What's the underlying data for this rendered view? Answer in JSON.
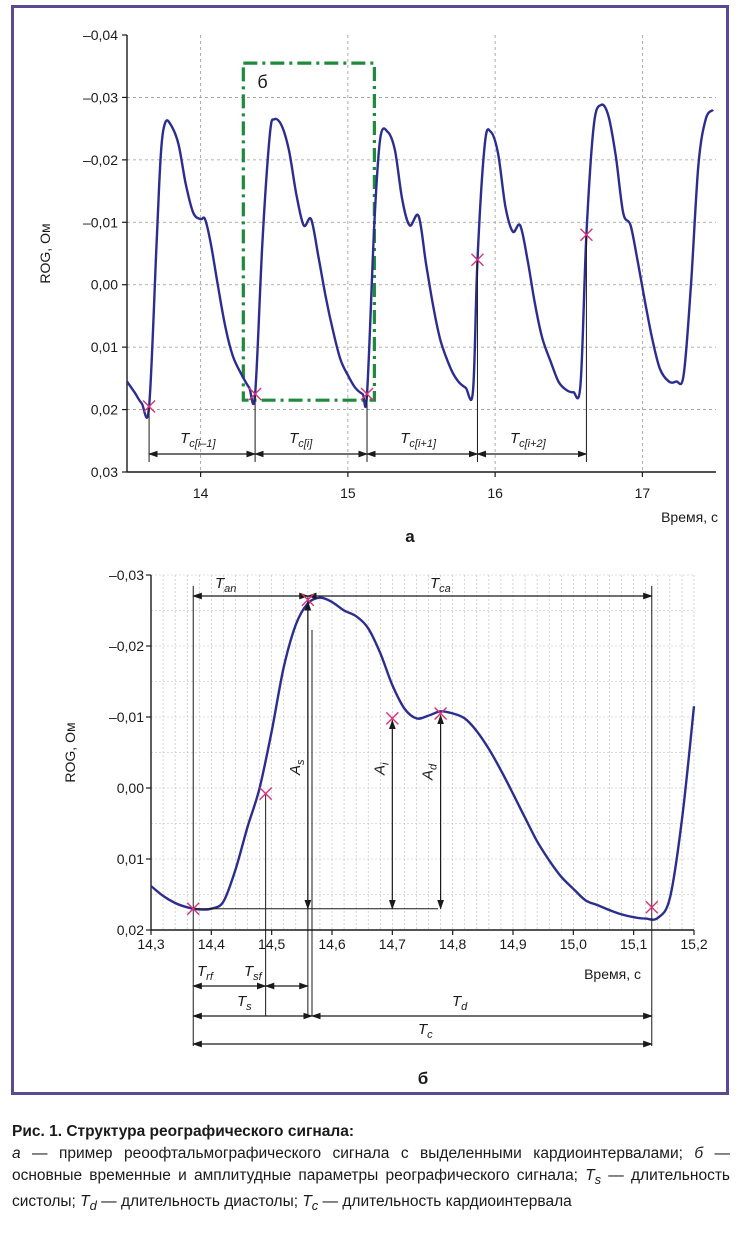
{
  "chart_data": [
    {
      "id": "a",
      "type": "line",
      "panel_label": "а",
      "xlabel": "Время, с",
      "ylabel": "ROG, Ом",
      "xlim": [
        13.5,
        17.5
      ],
      "ylim": [
        -0.04,
        0.03
      ],
      "y_inverted": true,
      "xticks": [
        "14",
        "15",
        "16",
        "17"
      ],
      "yticks": [
        "–0,04",
        "–0,03",
        "–0,02",
        "–0,01",
        "0,00",
        "0,01",
        "0,02",
        "0,03"
      ],
      "grid": "dashed",
      "series": [
        {
          "color": "#2b2e8f",
          "x": [
            13.5,
            13.55,
            13.6,
            13.65,
            13.7,
            13.73,
            13.76,
            13.8,
            13.85,
            13.9,
            13.95,
            14.0,
            14.03,
            14.07,
            14.12,
            14.17,
            14.22,
            14.28,
            14.33,
            14.37,
            14.42,
            14.47,
            14.5,
            14.55,
            14.6,
            14.65,
            14.7,
            14.75,
            14.8,
            14.85,
            14.9,
            14.95,
            15.0,
            15.05,
            15.1,
            15.13,
            15.18,
            15.22,
            15.27,
            15.32,
            15.37,
            15.42,
            15.48,
            15.53,
            15.58,
            15.63,
            15.7,
            15.75,
            15.8,
            15.85,
            15.88,
            15.93,
            15.97,
            16.02,
            16.07,
            16.12,
            16.17,
            16.22,
            16.27,
            16.32,
            16.38,
            16.43,
            16.48,
            16.53,
            16.58,
            16.62,
            16.67,
            16.72,
            16.77,
            16.82,
            16.87,
            16.92,
            16.97,
            17.02,
            17.07,
            17.12,
            17.18,
            17.23,
            17.28,
            17.33,
            17.38,
            17.43,
            17.48
          ],
          "y": [
            0.0155,
            0.0172,
            0.019,
            0.0195,
            -0.006,
            -0.021,
            -0.026,
            -0.0255,
            -0.0225,
            -0.016,
            -0.0115,
            -0.0105,
            -0.0105,
            -0.0065,
            0.0005,
            0.007,
            0.0115,
            0.0145,
            0.0165,
            0.0175,
            -0.007,
            -0.024,
            -0.0265,
            -0.0255,
            -0.0215,
            -0.0145,
            -0.0095,
            -0.0105,
            -0.0045,
            0.002,
            0.0075,
            0.012,
            0.0145,
            0.0165,
            0.0175,
            0.0175,
            -0.01,
            -0.0235,
            -0.0245,
            -0.0215,
            -0.0135,
            -0.0095,
            -0.011,
            -0.0035,
            0.0035,
            0.009,
            0.0135,
            0.0155,
            0.0165,
            0.017,
            -0.004,
            -0.0225,
            -0.0245,
            -0.021,
            -0.0125,
            -0.0085,
            -0.0095,
            -0.004,
            0.003,
            0.0085,
            0.0125,
            0.0155,
            0.0168,
            0.0172,
            0.016,
            -0.008,
            -0.0255,
            -0.0288,
            -0.027,
            -0.0205,
            -0.0115,
            -0.0095,
            -0.0035,
            0.003,
            0.009,
            0.0135,
            0.0155,
            0.0155,
            0.0145,
            0.0,
            -0.019,
            -0.0265,
            -0.028
          ]
        }
      ],
      "markers_x": [
        13.65,
        14.37,
        15.13,
        15.88,
        16.62
      ],
      "marker_color": "#d6337a",
      "highlight_box": {
        "label": "б",
        "x": [
          14.29,
          15.18
        ],
        "y": [
          -0.0355,
          0.0185
        ],
        "color": "#1f8a3c",
        "style": "dash-dot"
      },
      "intervals": [
        {
          "main": "T",
          "sub": "c[i–1]",
          "from": 13.65,
          "to": 14.37
        },
        {
          "main": "T",
          "sub": "c[i]",
          "from": 14.37,
          "to": 15.13
        },
        {
          "main": "T",
          "sub": "c[i+1]",
          "from": 15.13,
          "to": 15.88
        },
        {
          "main": "T",
          "sub": "c[i+2]",
          "from": 15.88,
          "to": 16.62
        }
      ]
    },
    {
      "id": "b",
      "type": "line",
      "panel_label": "б",
      "xlabel": "Время, с",
      "ylabel": "ROG, Ом",
      "xlim": [
        14.3,
        15.2
      ],
      "ylim": [
        -0.03,
        0.02
      ],
      "y_inverted": true,
      "xticks": [
        "14,3",
        "14,4",
        "14,5",
        "14,6",
        "14,7",
        "14,8",
        "14,9",
        "15,0",
        "15,1",
        "15,2"
      ],
      "yticks": [
        "–0,03",
        "–0,02",
        "–0,01",
        "0,00",
        "0,01",
        "0,02"
      ],
      "grid": "dotted",
      "series": [
        {
          "color": "#2b2e8f",
          "x": [
            14.3,
            14.32,
            14.34,
            14.36,
            14.38,
            14.4,
            14.42,
            14.44,
            14.46,
            14.48,
            14.5,
            14.52,
            14.54,
            14.56,
            14.58,
            14.6,
            14.62,
            14.64,
            14.66,
            14.68,
            14.7,
            14.72,
            14.74,
            14.76,
            14.78,
            14.8,
            14.82,
            14.84,
            14.86,
            14.88,
            14.9,
            14.92,
            14.94,
            14.96,
            14.98,
            15.0,
            15.02,
            15.04,
            15.06,
            15.08,
            15.1,
            15.12,
            15.14,
            15.16,
            15.18,
            15.2
          ],
          "y": [
            0.0138,
            0.0152,
            0.0162,
            0.0168,
            0.0171,
            0.017,
            0.016,
            0.0115,
            0.0055,
            0.0,
            -0.008,
            -0.017,
            -0.023,
            -0.026,
            -0.0268,
            -0.0262,
            -0.025,
            -0.0242,
            -0.0225,
            -0.019,
            -0.0145,
            -0.0112,
            -0.0098,
            -0.0102,
            -0.0108,
            -0.0105,
            -0.0098,
            -0.008,
            -0.0055,
            -0.0025,
            0.0008,
            0.0042,
            0.0075,
            0.0102,
            0.0125,
            0.0142,
            0.0158,
            0.0165,
            0.0172,
            0.0178,
            0.0182,
            0.0184,
            0.0183,
            0.0155,
            0.0045,
            -0.0115
          ]
        }
      ],
      "markers": [
        {
          "x": 14.37,
          "y": 0.017
        },
        {
          "x": 14.49,
          "y": 0.0008
        },
        {
          "x": 14.56,
          "y": -0.0265
        },
        {
          "x": 14.7,
          "y": -0.0098
        },
        {
          "x": 14.78,
          "y": -0.0105
        },
        {
          "x": 15.13,
          "y": 0.0168
        }
      ],
      "marker_color": "#d6337a",
      "annotations": {
        "T_an": {
          "main": "T",
          "sub": "an"
        },
        "T_ca": {
          "main": "T",
          "sub": "ca"
        },
        "A_s": {
          "main": "A",
          "sub": "s"
        },
        "A_i": {
          "main": "A",
          "sub": "i"
        },
        "A_d": {
          "main": "A",
          "sub": "d"
        },
        "T_rf": {
          "main": "T",
          "sub": "rf"
        },
        "T_sf": {
          "main": "T",
          "sub": "sf"
        },
        "T_s": {
          "main": "T",
          "sub": "s"
        },
        "T_d": {
          "main": "T",
          "sub": "d"
        },
        "T_c": {
          "main": "T",
          "sub": "c"
        }
      }
    }
  ],
  "caption": {
    "title": "Рис. 1. Структура реографического сигнала:",
    "body_html": "<i>а</i> — пример реоофтальмографического сигнала с выделенными кардиоинтервалами; <i>б</i> — основные временные и амплитудные параметры реографического сигнала; <i>T<sub>s</sub></i> — длительность систолы; <i>T<sub>d</sub></i> — длительность диастолы; <i>T<sub>c</sub></i> — длительность кардиоинтервала"
  }
}
